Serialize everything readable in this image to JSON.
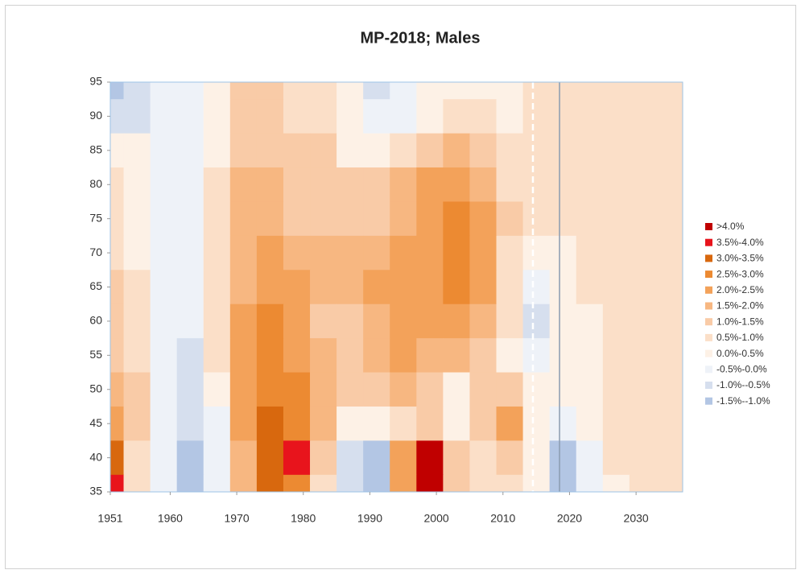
{
  "chart_data": {
    "type": "heatmap",
    "title": "MP-2018; Males",
    "x": [
      1951,
      1955,
      1959,
      1963,
      1967,
      1971,
      1975,
      1979,
      1983,
      1987,
      1991,
      1995,
      1999,
      2003,
      2007,
      2011,
      2015,
      2019,
      2023,
      2027,
      2031,
      2035
    ],
    "y": [
      95,
      90,
      85,
      80,
      75,
      70,
      65,
      60,
      55,
      50,
      45,
      40,
      35
    ],
    "z": [
      [
        -1.2,
        -0.7,
        -0.2,
        -0.2,
        0.3,
        1.2,
        1.2,
        0.8,
        0.7,
        0.3,
        -0.7,
        -0.5,
        0.2,
        0.3,
        0.3,
        0.3,
        0.6,
        0.7,
        0.7,
        0.7,
        0.7,
        0.7
      ],
      [
        -0.8,
        -0.6,
        -0.2,
        -0.3,
        0.3,
        1.3,
        1.2,
        0.8,
        0.5,
        0.2,
        -0.3,
        -0.2,
        0.2,
        0.6,
        0.6,
        0.4,
        0.6,
        0.7,
        0.7,
        0.7,
        0.7,
        0.7
      ],
      [
        0.3,
        0.2,
        -0.2,
        -0.3,
        0.4,
        1.4,
        1.4,
        1.1,
        1.0,
        0.4,
        0.4,
        0.8,
        1.2,
        1.6,
        1.3,
        0.7,
        0.6,
        0.7,
        0.7,
        0.7,
        0.7,
        0.7
      ],
      [
        0.7,
        0.3,
        -0.2,
        -0.3,
        0.5,
        1.5,
        1.6,
        1.3,
        1.3,
        1.0,
        1.1,
        1.5,
        2.0,
        2.2,
        1.8,
        0.9,
        0.6,
        0.7,
        0.7,
        0.7,
        0.7,
        0.7
      ],
      [
        0.8,
        0.3,
        -0.2,
        -0.3,
        0.5,
        1.7,
        1.7,
        1.4,
        1.2,
        1.2,
        1.4,
        1.7,
        2.1,
        2.7,
        2.3,
        1.0,
        0.5,
        0.5,
        0.6,
        0.7,
        0.7,
        0.7
      ],
      [
        0.9,
        0.4,
        -0.2,
        -0.4,
        0.5,
        1.8,
        2.0,
        1.9,
        1.6,
        1.5,
        1.7,
        2.0,
        2.2,
        2.6,
        2.4,
        0.9,
        0.2,
        0.3,
        0.6,
        0.7,
        0.7,
        0.7
      ],
      [
        1.0,
        0.5,
        -0.2,
        -0.4,
        0.6,
        1.9,
        2.4,
        2.2,
        1.7,
        1.6,
        2.0,
        2.2,
        2.3,
        2.7,
        2.3,
        0.8,
        -0.3,
        0.2,
        0.5,
        0.7,
        0.7,
        0.7
      ],
      [
        1.1,
        0.6,
        -0.2,
        -0.5,
        0.6,
        2.0,
        2.7,
        2.4,
        1.4,
        1.4,
        1.8,
        2.2,
        2.3,
        2.2,
        1.8,
        0.6,
        -0.6,
        0.0,
        0.4,
        0.7,
        0.7,
        0.7
      ],
      [
        1.3,
        0.8,
        -0.2,
        -0.6,
        0.5,
        2.1,
        2.7,
        2.4,
        1.7,
        1.3,
        1.5,
        2.0,
        1.8,
        1.5,
        1.2,
        0.4,
        -0.3,
        0.1,
        0.4,
        0.7,
        0.7,
        0.7
      ],
      [
        1.6,
        1.0,
        -0.2,
        -0.6,
        0.3,
        2.2,
        2.8,
        2.5,
        1.8,
        1.0,
        1.0,
        1.5,
        1.0,
        0.2,
        1.0,
        1.2,
        0.3,
        0.2,
        0.4,
        0.7,
        0.7,
        0.7
      ],
      [
        2.0,
        1.0,
        -0.3,
        -0.8,
        -0.1,
        2.0,
        3.1,
        2.6,
        1.5,
        0.3,
        0.2,
        0.9,
        1.2,
        0.4,
        1.3,
        2.2,
        0.4,
        -0.5,
        0.3,
        0.6,
        0.7,
        0.7
      ],
      [
        3.0,
        0.8,
        -0.4,
        -1.2,
        -0.3,
        1.8,
        3.2,
        3.6,
        1.0,
        -0.8,
        -1.2,
        2.0,
        4.2,
        1.0,
        0.8,
        1.2,
        0.3,
        -1.1,
        -0.3,
        0.5,
        0.7,
        0.7
      ],
      [
        3.6,
        0.6,
        -0.5,
        -1.2,
        -0.3,
        1.6,
        3.1,
        2.6,
        0.8,
        -0.8,
        -1.2,
        2.2,
        4.3,
        1.0,
        0.5,
        0.6,
        0.2,
        -1.1,
        -0.5,
        0.4,
        0.7,
        0.7
      ]
    ],
    "xlim": [
      1951,
      2037
    ],
    "ylim": [
      35,
      95
    ],
    "xticks": [
      1951,
      1960,
      1970,
      1980,
      1990,
      2000,
      2010,
      2020,
      2030
    ],
    "yticks": [
      35,
      40,
      45,
      50,
      55,
      60,
      65,
      70,
      75,
      80,
      85,
      90,
      95
    ],
    "vlines": [
      {
        "x": 2014.5,
        "color": "#ffffff",
        "dashed": true
      },
      {
        "x": 2018.5,
        "color": "#8a9bb0",
        "dashed": false
      }
    ],
    "legend": [
      {
        "label": ">4.0%",
        "color": "#c00000"
      },
      {
        "label": "3.5%-4.0%",
        "color": "#e8141c"
      },
      {
        "label": "3.0%-3.5%",
        "color": "#d8680e"
      },
      {
        "label": "2.5%-3.0%",
        "color": "#ec8a32"
      },
      {
        "label": "2.0%-2.5%",
        "color": "#f3a25a"
      },
      {
        "label": "1.5%-2.0%",
        "color": "#f7b781"
      },
      {
        "label": "1.0%-1.5%",
        "color": "#f9cba7"
      },
      {
        "label": "0.5%-1.0%",
        "color": "#fbdfc8"
      },
      {
        "label": "0.0%-0.5%",
        "color": "#fdf1e6"
      },
      {
        "label": "-0.5%-0.0%",
        "color": "#eef2f8"
      },
      {
        "label": "-1.0%--0.5%",
        "color": "#d6dfee"
      },
      {
        "label": "-1.5%--1.0%",
        "color": "#b3c6e4"
      }
    ]
  }
}
